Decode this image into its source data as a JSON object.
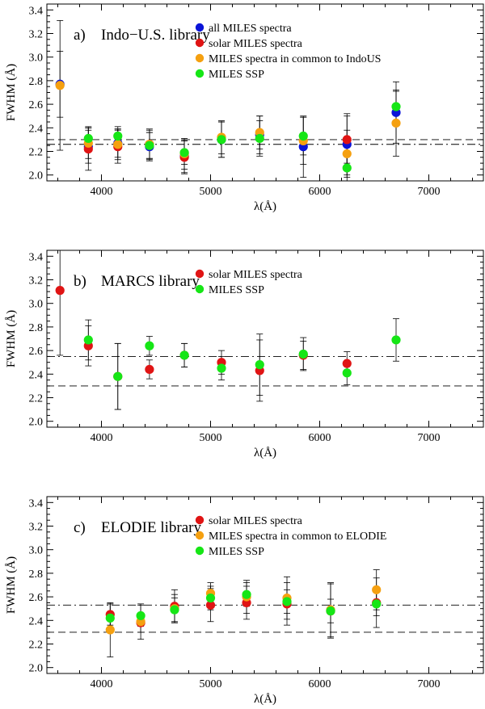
{
  "colors": {
    "all": "#0a14d8",
    "solar": "#e01414",
    "common": "#f5a010",
    "ssp": "#16e616",
    "axis": "#000000"
  },
  "chart_data": [
    {
      "type": "scatter",
      "panel_label": "a)",
      "title": "Indo−U.S. library",
      "xlabel": "λ(Å)",
      "ylabel": "FWHM (Å)",
      "xlim": [
        3500,
        7500
      ],
      "ylim": [
        1.95,
        3.45
      ],
      "xticks": [
        "4000",
        "5000",
        "6000",
        "7000"
      ],
      "yticks": [
        "2.0",
        "2.2",
        "2.4",
        "2.6",
        "2.8",
        "3.0",
        "3.2",
        "3.4"
      ],
      "hlines": [
        {
          "style": "dashed",
          "y": 2.3
        },
        {
          "style": "dashdot",
          "y": 2.26
        }
      ],
      "legend": [
        {
          "key": "all",
          "label": "all MILES spectra"
        },
        {
          "key": "solar",
          "label": "solar MILES spectra"
        },
        {
          "key": "common",
          "label": "MILES spectra in common to IndoUS"
        },
        {
          "key": "ssp",
          "label": "MILES SSP"
        }
      ],
      "series": [
        {
          "key": "all",
          "name": "all MILES spectra",
          "points": [
            {
              "x": 3620,
              "y": 2.77,
              "err": 0.28
            },
            {
              "x": 3880,
              "y": 2.24,
              "err": 0.14
            },
            {
              "x": 4150,
              "y": 2.27,
              "err": 0.12
            },
            {
              "x": 4440,
              "y": 2.24,
              "err": 0.12
            },
            {
              "x": 4760,
              "y": 2.16,
              "err": 0.14
            },
            {
              "x": 5100,
              "y": 2.3,
              "err": 0.15
            },
            {
              "x": 5450,
              "y": 2.34,
              "err": 0.16
            },
            {
              "x": 5850,
              "y": 2.24,
              "err": 0.26
            },
            {
              "x": 6250,
              "y": 2.26,
              "err": 0.26
            },
            {
              "x": 6700,
              "y": 2.53,
              "err": 0.26
            }
          ]
        },
        {
          "key": "solar",
          "name": "solar MILES spectra",
          "points": [
            {
              "x": 3880,
              "y": 2.22,
              "err": 0.18
            },
            {
              "x": 4150,
              "y": 2.24,
              "err": 0.14
            },
            {
              "x": 4440,
              "y": 2.26,
              "err": 0.12
            },
            {
              "x": 4760,
              "y": 2.15,
              "err": 0.14
            },
            {
              "x": 6250,
              "y": 2.3,
              "err": 0.2
            }
          ]
        },
        {
          "key": "common",
          "name": "MILES spectra in common to IndoUS",
          "points": [
            {
              "x": 3620,
              "y": 2.76,
              "err": 0.55
            },
            {
              "x": 3880,
              "y": 2.27,
              "err": 0.13
            },
            {
              "x": 4150,
              "y": 2.26,
              "err": 0.13
            },
            {
              "x": 4440,
              "y": 2.26,
              "err": 0.13
            },
            {
              "x": 4760,
              "y": 2.18,
              "err": 0.13
            },
            {
              "x": 5100,
              "y": 2.32,
              "err": 0.14
            },
            {
              "x": 5450,
              "y": 2.36,
              "err": 0.14
            },
            {
              "x": 5850,
              "y": 2.29,
              "err": 0.2
            },
            {
              "x": 6250,
              "y": 2.18,
              "err": 0.2
            },
            {
              "x": 6700,
              "y": 2.44,
              "err": 0.28
            }
          ]
        },
        {
          "key": "ssp",
          "name": "MILES SSP",
          "points": [
            {
              "x": 3880,
              "y": 2.31,
              "err": 0.1
            },
            {
              "x": 4150,
              "y": 2.33,
              "err": 0.08
            },
            {
              "x": 4440,
              "y": 2.25,
              "err": 0.11
            },
            {
              "x": 4760,
              "y": 2.19,
              "err": 0.1
            },
            {
              "x": 5100,
              "y": 2.3,
              "err": 0.15
            },
            {
              "x": 5450,
              "y": 2.31,
              "err": 0.15
            },
            {
              "x": 5850,
              "y": 2.33,
              "err": 0.16
            },
            {
              "x": 6250,
              "y": 2.06,
              "err": 0.13
            },
            {
              "x": 6700,
              "y": 2.58,
              "err": 0.13
            }
          ]
        }
      ]
    },
    {
      "type": "scatter",
      "panel_label": "b)",
      "title": "MARCS library",
      "xlabel": "λ(Å)",
      "ylabel": "FWHM (Å)",
      "xlim": [
        3500,
        7500
      ],
      "ylim": [
        1.95,
        3.45
      ],
      "xticks": [
        "4000",
        "5000",
        "6000",
        "7000"
      ],
      "yticks": [
        "2.0",
        "2.2",
        "2.4",
        "2.6",
        "2.8",
        "3.0",
        "3.2",
        "3.4"
      ],
      "hlines": [
        {
          "style": "dashed",
          "y": 2.3
        },
        {
          "style": "dashdot",
          "y": 2.55
        }
      ],
      "legend": [
        {
          "key": "solar",
          "label": "solar MILES spectra"
        },
        {
          "key": "ssp",
          "label": "MILES SSP"
        }
      ],
      "series": [
        {
          "key": "solar",
          "name": "solar MILES spectra",
          "points": [
            {
              "x": 3620,
              "y": 3.11,
              "err": 0.55
            },
            {
              "x": 3880,
              "y": 2.64,
              "err": 0.17
            },
            {
              "x": 4150,
              "y": 2.38,
              "err": 0.28
            },
            {
              "x": 4440,
              "y": 2.44,
              "err": 0.08
            },
            {
              "x": 4760,
              "y": 2.56,
              "err": 0.1
            },
            {
              "x": 5100,
              "y": 2.5,
              "err": 0.1
            },
            {
              "x": 5450,
              "y": 2.43,
              "err": 0.26
            },
            {
              "x": 5850,
              "y": 2.56,
              "err": 0.12
            },
            {
              "x": 6250,
              "y": 2.49,
              "err": 0.1
            }
          ]
        },
        {
          "key": "ssp",
          "name": "MILES SSP",
          "points": [
            {
              "x": 3880,
              "y": 2.69,
              "err": 0.17
            },
            {
              "x": 4150,
              "y": 2.38,
              "err": 0.28
            },
            {
              "x": 4440,
              "y": 2.64,
              "err": 0.08
            },
            {
              "x": 4760,
              "y": 2.56,
              "err": 0.1
            },
            {
              "x": 5100,
              "y": 2.45,
              "err": 0.1
            },
            {
              "x": 5450,
              "y": 2.48,
              "err": 0.26
            },
            {
              "x": 5850,
              "y": 2.57,
              "err": 0.14
            },
            {
              "x": 6250,
              "y": 2.41,
              "err": 0.1
            },
            {
              "x": 6700,
              "y": 2.69,
              "err": 0.18
            }
          ]
        }
      ]
    },
    {
      "type": "scatter",
      "panel_label": "c)",
      "title": "ELODIE library",
      "xlabel": "λ(Å)",
      "ylabel": "FWHM (Å)",
      "xlim": [
        3500,
        7500
      ],
      "ylim": [
        1.95,
        3.45
      ],
      "xticks": [
        "4000",
        "5000",
        "6000",
        "7000"
      ],
      "yticks": [
        "2.0",
        "2.2",
        "2.4",
        "2.6",
        "2.8",
        "3.0",
        "3.2",
        "3.4"
      ],
      "hlines": [
        {
          "style": "dashed",
          "y": 2.3
        },
        {
          "style": "dashdot",
          "y": 2.53
        }
      ],
      "legend": [
        {
          "key": "solar",
          "label": "solar MILES spectra"
        },
        {
          "key": "common",
          "label": "MILES spectra in common to ELODIE"
        },
        {
          "key": "ssp",
          "label": "MILES SSP"
        }
      ],
      "series": [
        {
          "key": "solar",
          "name": "solar MILES spectra",
          "points": [
            {
              "x": 4080,
              "y": 2.45,
              "err": 0.09
            },
            {
              "x": 4360,
              "y": 2.38,
              "err": 0.08
            },
            {
              "x": 4670,
              "y": 2.52,
              "err": 0.14
            },
            {
              "x": 5000,
              "y": 2.53,
              "err": 0.14
            },
            {
              "x": 5330,
              "y": 2.55,
              "err": 0.14
            },
            {
              "x": 5700,
              "y": 2.54,
              "err": 0.18
            },
            {
              "x": 6100,
              "y": 2.48,
              "err": 0.23
            },
            {
              "x": 6520,
              "y": 2.55,
              "err": 0.21
            }
          ]
        },
        {
          "key": "common",
          "name": "MILES spectra in common to ELODIE",
          "points": [
            {
              "x": 4080,
              "y": 2.32,
              "err": 0.23
            },
            {
              "x": 4360,
              "y": 2.39,
              "err": 0.15
            },
            {
              "x": 4670,
              "y": 2.5,
              "err": 0.12
            },
            {
              "x": 5000,
              "y": 2.63,
              "err": 0.09
            },
            {
              "x": 5330,
              "y": 2.6,
              "err": 0.14
            },
            {
              "x": 5700,
              "y": 2.59,
              "err": 0.18
            },
            {
              "x": 6100,
              "y": 2.49,
              "err": 0.23
            },
            {
              "x": 6520,
              "y": 2.66,
              "err": 0.17
            }
          ]
        },
        {
          "key": "ssp",
          "name": "MILES SSP",
          "points": [
            {
              "x": 4080,
              "y": 2.42,
              "err": 0.12
            },
            {
              "x": 4360,
              "y": 2.44,
              "err": 0.09
            },
            {
              "x": 4670,
              "y": 2.49,
              "err": 0.1
            },
            {
              "x": 5000,
              "y": 2.59,
              "err": 0.1
            },
            {
              "x": 5330,
              "y": 2.62,
              "err": 0.1
            },
            {
              "x": 5700,
              "y": 2.56,
              "err": 0.1
            },
            {
              "x": 6100,
              "y": 2.48,
              "err": 0.1
            },
            {
              "x": 6520,
              "y": 2.54,
              "err": 0.1
            }
          ]
        }
      ]
    }
  ]
}
